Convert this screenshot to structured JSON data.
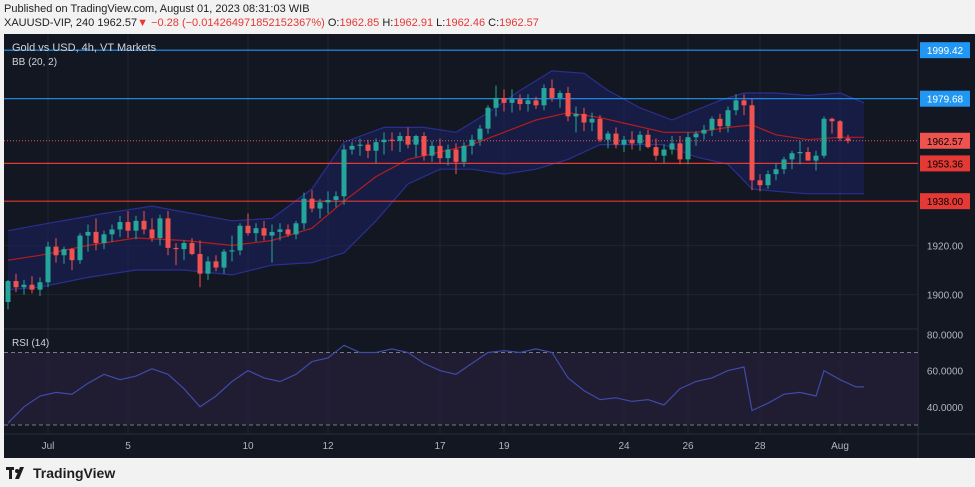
{
  "header": {
    "published": "Published on TradingView.com, August 01, 2023 08:31:03 WIB",
    "symbol": "XAUUSD-VIP, 240",
    "last": "1962.57",
    "change_arrow": "▼",
    "change": "−0.28 (−0.014264971852152367%)",
    "open_label": "O:",
    "open": "1962.85",
    "high_label": "H:",
    "high": "1962.91",
    "low_label": "L:",
    "low": "1962.46",
    "close_label": "C:",
    "close": "1962.57"
  },
  "legend": {
    "title": "Gold vs USD, 4h, VT Markets",
    "bb": "BB (20, 2)",
    "rsi": "RSI (14)"
  },
  "footer": {
    "brand": "TradingView"
  },
  "colors": {
    "background": "#131722",
    "up": "#26a69a",
    "down": "#ef5350",
    "bb_basis": "#b71c1c",
    "bb_band": "#2a2f8f",
    "rsi_line": "#3f4ba8",
    "blue_line": "#2196f3",
    "red_line": "#e53935"
  },
  "chart_data": [
    {
      "type": "candlestick",
      "title": "Gold vs USD, 4h, VT Markets",
      "indicator": "BB (20, 2)",
      "ylim": [
        1886,
        2006
      ],
      "y_ticks": [
        1900.0,
        1920.0
      ],
      "x_ticks": [
        "Jul",
        "5",
        "10",
        "12",
        "17",
        "19",
        "24",
        "26",
        "28",
        "Aug"
      ],
      "x_tick_index": [
        5,
        15,
        30,
        40,
        54,
        62,
        77,
        85,
        94,
        104
      ],
      "candles": [
        [
          1897.0,
          1906.0,
          1894.0,
          1905.5
        ],
        [
          1905.5,
          1908.5,
          1901.0,
          1903.0
        ],
        [
          1903.0,
          1906.0,
          1900.0,
          1904.0
        ],
        [
          1904.0,
          1907.5,
          1900.5,
          1902.0
        ],
        [
          1902.0,
          1907.0,
          1899.5,
          1905.0
        ],
        [
          1905.0,
          1921.5,
          1903.0,
          1919.5
        ],
        [
          1919.5,
          1923.0,
          1913.0,
          1916.0
        ],
        [
          1916.0,
          1919.5,
          1912.5,
          1918.5
        ],
        [
          1918.5,
          1919.0,
          1910.0,
          1914.0
        ],
        [
          1914.0,
          1925.0,
          1912.5,
          1924.0
        ],
        [
          1924.0,
          1928.5,
          1917.5,
          1925.5
        ],
        [
          1925.5,
          1931.0,
          1918.0,
          1921.0
        ],
        [
          1921.0,
          1926.0,
          1918.5,
          1924.5
        ],
        [
          1924.5,
          1928.5,
          1921.5,
          1926.5
        ],
        [
          1926.5,
          1932.0,
          1923.5,
          1929.5
        ],
        [
          1929.5,
          1934.0,
          1923.0,
          1926.0
        ],
        [
          1926.0,
          1932.0,
          1922.5,
          1930.0
        ],
        [
          1930.0,
          1934.0,
          1924.5,
          1926.5
        ],
        [
          1926.5,
          1931.0,
          1921.5,
          1923.0
        ],
        [
          1923.0,
          1932.5,
          1920.0,
          1931.0
        ],
        [
          1931.0,
          1934.0,
          1916.0,
          1919.0
        ],
        [
          1919.0,
          1921.0,
          1912.0,
          1918.5
        ],
        [
          1918.5,
          1922.0,
          1914.0,
          1921.0
        ],
        [
          1921.0,
          1923.0,
          1916.0,
          1916.5
        ],
        [
          1916.5,
          1922.0,
          1903.0,
          1908.5
        ],
        [
          1908.5,
          1915.5,
          1906.0,
          1913.5
        ],
        [
          1913.5,
          1916.0,
          1909.5,
          1911.0
        ],
        [
          1911.0,
          1918.5,
          1908.5,
          1917.5
        ],
        [
          1917.5,
          1924.0,
          1913.5,
          1918.0
        ],
        [
          1918.0,
          1929.0,
          1916.0,
          1928.0
        ],
        [
          1928.0,
          1933.0,
          1924.0,
          1925.0
        ],
        [
          1925.0,
          1929.0,
          1921.5,
          1927.0
        ],
        [
          1927.0,
          1930.0,
          1922.0,
          1924.0
        ],
        [
          1924.0,
          1928.5,
          1913.0,
          1925.5
        ],
        [
          1925.5,
          1929.0,
          1922.0,
          1926.5
        ],
        [
          1926.5,
          1928.5,
          1923.5,
          1924.5
        ],
        [
          1924.5,
          1930.0,
          1922.5,
          1929.0
        ],
        [
          1929.0,
          1941.5,
          1926.5,
          1939.0
        ],
        [
          1939.0,
          1942.5,
          1933.5,
          1935.0
        ],
        [
          1935.0,
          1939.0,
          1931.0,
          1937.5
        ],
        [
          1937.5,
          1942.0,
          1933.0,
          1938.5
        ],
        [
          1938.5,
          1942.0,
          1935.5,
          1940.0
        ],
        [
          1940.0,
          1961.0,
          1936.5,
          1959.0
        ],
        [
          1959.0,
          1962.0,
          1957.0,
          1960.5
        ],
        [
          1960.5,
          1963.5,
          1956.5,
          1961.0
        ],
        [
          1961.0,
          1963.0,
          1955.5,
          1958.5
        ],
        [
          1958.5,
          1963.5,
          1953.5,
          1962.0
        ],
        [
          1962.0,
          1966.0,
          1957.0,
          1963.0
        ],
        [
          1963.0,
          1966.0,
          1958.5,
          1962.5
        ],
        [
          1962.5,
          1966.0,
          1958.0,
          1964.5
        ],
        [
          1964.5,
          1968.0,
          1959.5,
          1961.0
        ],
        [
          1961.0,
          1965.0,
          1956.0,
          1964.5
        ],
        [
          1964.5,
          1966.0,
          1954.5,
          1956.5
        ],
        [
          1956.5,
          1962.5,
          1954.0,
          1960.5
        ],
        [
          1960.5,
          1963.5,
          1953.5,
          1955.5
        ],
        [
          1955.5,
          1961.0,
          1952.5,
          1959.0
        ],
        [
          1959.0,
          1961.5,
          1949.0,
          1954.0
        ],
        [
          1954.0,
          1962.0,
          1952.0,
          1960.5
        ],
        [
          1960.5,
          1965.0,
          1957.0,
          1963.0
        ],
        [
          1963.0,
          1969.0,
          1960.5,
          1967.5
        ],
        [
          1967.5,
          1977.0,
          1965.5,
          1976.0
        ],
        [
          1976.0,
          1985.0,
          1972.5,
          1980.0
        ],
        [
          1980.0,
          1983.5,
          1974.5,
          1978.0
        ],
        [
          1978.0,
          1983.5,
          1974.0,
          1979.5
        ],
        [
          1979.5,
          1981.5,
          1975.0,
          1977.5
        ],
        [
          1977.5,
          1981.5,
          1974.5,
          1979.0
        ],
        [
          1979.0,
          1980.5,
          1975.5,
          1977.0
        ],
        [
          1977.0,
          1985.5,
          1975.0,
          1984.0
        ],
        [
          1984.0,
          1987.5,
          1978.5,
          1980.0
        ],
        [
          1980.0,
          1983.0,
          1976.0,
          1982.0
        ],
        [
          1982.0,
          1984.5,
          1970.5,
          1972.5
        ],
        [
          1972.5,
          1976.5,
          1966.0,
          1973.5
        ],
        [
          1973.5,
          1976.0,
          1966.5,
          1970.0
        ],
        [
          1970.0,
          1974.0,
          1966.5,
          1971.5
        ],
        [
          1971.5,
          1973.0,
          1962.0,
          1963.0
        ],
        [
          1963.0,
          1966.5,
          1959.5,
          1965.5
        ],
        [
          1965.5,
          1968.0,
          1959.5,
          1961.0
        ],
        [
          1961.0,
          1964.5,
          1958.0,
          1963.0
        ],
        [
          1963.0,
          1966.5,
          1959.0,
          1961.5
        ],
        [
          1961.5,
          1966.5,
          1958.5,
          1965.0
        ],
        [
          1965.0,
          1967.0,
          1959.5,
          1960.0
        ],
        [
          1960.0,
          1963.5,
          1954.5,
          1956.5
        ],
        [
          1956.5,
          1961.0,
          1953.5,
          1959.0
        ],
        [
          1959.0,
          1964.5,
          1957.0,
          1961.5
        ],
        [
          1961.5,
          1964.5,
          1953.0,
          1955.0
        ],
        [
          1955.0,
          1966.0,
          1953.0,
          1964.0
        ],
        [
          1964.0,
          1966.5,
          1960.5,
          1965.5
        ],
        [
          1965.5,
          1969.0,
          1963.0,
          1967.0
        ],
        [
          1967.0,
          1972.5,
          1964.5,
          1971.5
        ],
        [
          1971.5,
          1973.5,
          1966.0,
          1968.5
        ],
        [
          1968.5,
          1976.5,
          1966.0,
          1975.0
        ],
        [
          1975.0,
          1981.5,
          1973.0,
          1979.0
        ],
        [
          1979.0,
          1981.5,
          1973.0,
          1977.0
        ],
        [
          1977.0,
          1979.5,
          1942.5,
          1946.5
        ],
        [
          1946.5,
          1949.0,
          1942.0,
          1944.5
        ],
        [
          1944.5,
          1950.5,
          1943.0,
          1949.0
        ],
        [
          1949.0,
          1953.5,
          1946.5,
          1951.0
        ],
        [
          1951.0,
          1956.0,
          1949.0,
          1955.0
        ],
        [
          1955.0,
          1958.5,
          1951.0,
          1957.5
        ],
        [
          1957.5,
          1962.5,
          1953.0,
          1958.0
        ],
        [
          1958.0,
          1960.0,
          1954.5,
          1954.5
        ],
        [
          1954.5,
          1958.5,
          1950.5,
          1956.5
        ],
        [
          1956.5,
          1972.5,
          1955.5,
          1971.5
        ],
        [
          1971.5,
          1972.0,
          1965.5,
          1970.5
        ],
        [
          1970.5,
          1971.0,
          1962.5,
          1963.5
        ],
        [
          1963.5,
          1965.0,
          1961.5,
          1962.57
        ]
      ],
      "bb_upper": [
        [
          0,
          1926
        ],
        [
          5,
          1929
        ],
        [
          12,
          1933
        ],
        [
          18,
          1936
        ],
        [
          23,
          1933
        ],
        [
          28,
          1930
        ],
        [
          33,
          1931
        ],
        [
          38,
          1943
        ],
        [
          42,
          1962
        ],
        [
          47,
          1968
        ],
        [
          52,
          1968
        ],
        [
          56,
          1966
        ],
        [
          60,
          1974
        ],
        [
          64,
          1983
        ],
        [
          68,
          1991
        ],
        [
          72,
          1990
        ],
        [
          75,
          1983
        ],
        [
          79,
          1976
        ],
        [
          83,
          1971
        ],
        [
          86,
          1975
        ],
        [
          89,
          1979
        ],
        [
          92,
          1982
        ],
        [
          96,
          1982
        ],
        [
          100,
          1981
        ],
        [
          104,
          1982
        ],
        [
          107,
          1978
        ]
      ],
      "bb_basis": [
        [
          0,
          1914
        ],
        [
          4,
          1916
        ],
        [
          10,
          1920
        ],
        [
          16,
          1923
        ],
        [
          22,
          1922
        ],
        [
          28,
          1920
        ],
        [
          33,
          1922
        ],
        [
          38,
          1927
        ],
        [
          42,
          1938
        ],
        [
          46,
          1948
        ],
        [
          50,
          1955
        ],
        [
          54,
          1958
        ],
        [
          58,
          1961
        ],
        [
          62,
          1966
        ],
        [
          66,
          1971
        ],
        [
          70,
          1974
        ],
        [
          74,
          1972
        ],
        [
          78,
          1969
        ],
        [
          82,
          1966
        ],
        [
          86,
          1966
        ],
        [
          90,
          1968
        ],
        [
          93,
          1969
        ],
        [
          96,
          1965
        ],
        [
          100,
          1963
        ],
        [
          104,
          1964
        ],
        [
          107,
          1964
        ]
      ],
      "bb_lower": [
        [
          0,
          1902
        ],
        [
          4,
          1903
        ],
        [
          10,
          1907
        ],
        [
          16,
          1910
        ],
        [
          22,
          1910
        ],
        [
          28,
          1908
        ],
        [
          33,
          1912
        ],
        [
          38,
          1913
        ],
        [
          42,
          1917
        ],
        [
          46,
          1930
        ],
        [
          50,
          1945
        ],
        [
          54,
          1951
        ],
        [
          58,
          1951
        ],
        [
          62,
          1949
        ],
        [
          66,
          1951
        ],
        [
          70,
          1955
        ],
        [
          74,
          1961
        ],
        [
          78,
          1961
        ],
        [
          82,
          1961
        ],
        [
          86,
          1956
        ],
        [
          90,
          1953
        ],
        [
          93,
          1943
        ],
        [
          96,
          1942
        ],
        [
          100,
          1941
        ],
        [
          104,
          1941
        ],
        [
          107,
          1941
        ]
      ],
      "price_lines": [
        {
          "value": 1999.42,
          "label": "1999.42",
          "color": "blue"
        },
        {
          "value": 1979.68,
          "label": "1979.68",
          "color": "blue"
        },
        {
          "value": 1953.36,
          "label": "1953.36",
          "color": "red"
        },
        {
          "value": 1938.0,
          "label": "1938.00",
          "color": "red"
        }
      ],
      "last_price": {
        "value": 1962.57,
        "label": "1962.57"
      }
    },
    {
      "type": "line",
      "title": "RSI (14)",
      "ylim": [
        25,
        83
      ],
      "y_ticks": [
        80.0,
        60.0,
        40.0
      ],
      "bands": [
        70,
        30
      ],
      "values": [
        [
          0,
          31
        ],
        [
          2,
          40
        ],
        [
          4,
          46
        ],
        [
          6,
          48
        ],
        [
          8,
          47
        ],
        [
          10,
          53
        ],
        [
          12,
          58
        ],
        [
          14,
          55
        ],
        [
          16,
          57
        ],
        [
          18,
          61
        ],
        [
          20,
          58
        ],
        [
          22,
          50
        ],
        [
          24,
          40
        ],
        [
          26,
          46
        ],
        [
          28,
          54
        ],
        [
          30,
          60
        ],
        [
          32,
          56
        ],
        [
          34,
          54
        ],
        [
          36,
          58
        ],
        [
          38,
          65
        ],
        [
          40,
          67
        ],
        [
          42,
          74
        ],
        [
          44,
          70
        ],
        [
          46,
          70
        ],
        [
          48,
          72
        ],
        [
          50,
          70
        ],
        [
          52,
          64
        ],
        [
          54,
          60
        ],
        [
          56,
          58
        ],
        [
          58,
          64
        ],
        [
          60,
          70
        ],
        [
          62,
          71
        ],
        [
          64,
          70
        ],
        [
          66,
          72
        ],
        [
          68,
          70
        ],
        [
          70,
          56
        ],
        [
          72,
          49
        ],
        [
          74,
          44
        ],
        [
          76,
          45
        ],
        [
          78,
          43
        ],
        [
          80,
          44
        ],
        [
          82,
          41
        ],
        [
          84,
          50
        ],
        [
          86,
          54
        ],
        [
          88,
          56
        ],
        [
          90,
          60
        ],
        [
          92,
          62
        ],
        [
          93,
          38
        ],
        [
          95,
          42
        ],
        [
          97,
          47
        ],
        [
          99,
          48
        ],
        [
          101,
          46
        ],
        [
          102,
          60
        ],
        [
          104,
          55
        ],
        [
          106,
          51
        ],
        [
          107,
          51
        ]
      ]
    }
  ]
}
